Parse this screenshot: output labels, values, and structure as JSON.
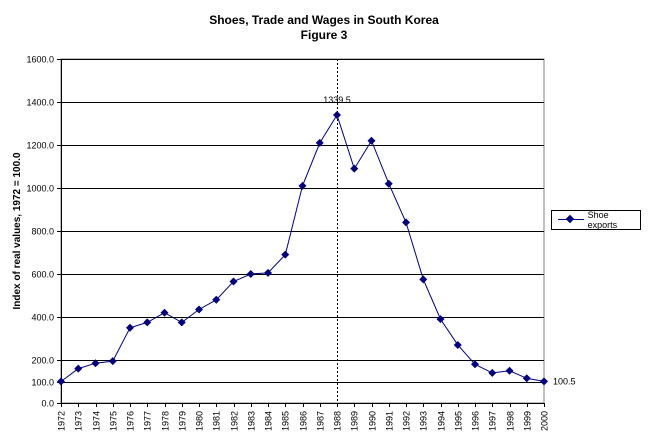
{
  "chart_data": {
    "type": "line",
    "title": "Shoes, Trade and Wages in South Korea",
    "subtitle": "Figure 3",
    "xlabel": "",
    "ylabel": "Index of real values, 1972 = 100.0",
    "ylim": [
      0,
      1600
    ],
    "yticks": [
      "0.0",
      "100.0",
      "200.0",
      "400.0",
      "600.0",
      "800.0",
      "1000.0",
      "1200.0",
      "1400.0",
      "1600.0"
    ],
    "ytick_values": [
      0,
      100,
      200,
      400,
      600,
      800,
      1000,
      1200,
      1400,
      1600
    ],
    "grid": true,
    "legend_position": "right",
    "categories": [
      "1972",
      "1973",
      "1974",
      "1975",
      "1976",
      "1977",
      "1978",
      "1979",
      "1980",
      "1981",
      "1982",
      "1983",
      "1984",
      "1985",
      "1986",
      "1987",
      "1988",
      "1989",
      "1990",
      "1991",
      "1992",
      "1993",
      "1994",
      "1995",
      "1996",
      "1997",
      "1998",
      "1999",
      "2000"
    ],
    "series": [
      {
        "name": "Shoe exports",
        "color": "#000080",
        "values": [
          100,
          160,
          185,
          195,
          350,
          375,
          420,
          375,
          435,
          480,
          565,
          600,
          605,
          690,
          1010,
          1210,
          1339.5,
          1090,
          1220,
          1020,
          840,
          575,
          390,
          270,
          180,
          140,
          150,
          115,
          100.5
        ]
      }
    ],
    "annotations": [
      {
        "category": "1988",
        "value": 1339.5,
        "text": "1339.5"
      },
      {
        "category": "2000",
        "value": 100.5,
        "text": "100.5"
      }
    ],
    "reference_line": {
      "category": "1988",
      "style": "dashed"
    }
  }
}
